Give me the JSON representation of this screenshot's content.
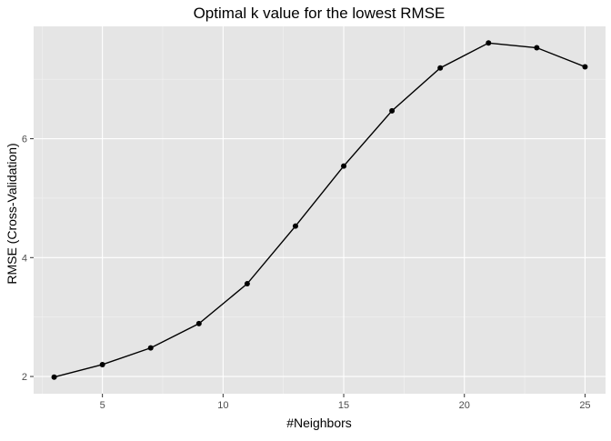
{
  "chart_data": {
    "type": "line",
    "title": "Optimal k value for the lowest RMSE",
    "xlabel": "#Neighbors",
    "ylabel": "RMSE (Cross-Validation)",
    "x": [
      3,
      5,
      7,
      9,
      11,
      13,
      15,
      17,
      19,
      21,
      23,
      25
    ],
    "series": [
      {
        "values": [
          1.99,
          2.2,
          2.48,
          2.89,
          3.56,
          4.53,
          5.54,
          6.47,
          7.19,
          7.61,
          7.53,
          7.21
        ]
      }
    ],
    "xlim": [
      2.15,
      25.85
    ],
    "ylim": [
      1.71,
      7.89
    ],
    "xticks": [
      5,
      10,
      15,
      20,
      25
    ],
    "yticks": [
      2,
      4,
      6
    ],
    "grid": true,
    "legend": "none",
    "colors": {
      "panel_background": "#e5e5e5",
      "grid_major": "#ffffff",
      "line": "#000000",
      "points": "#000000"
    }
  }
}
